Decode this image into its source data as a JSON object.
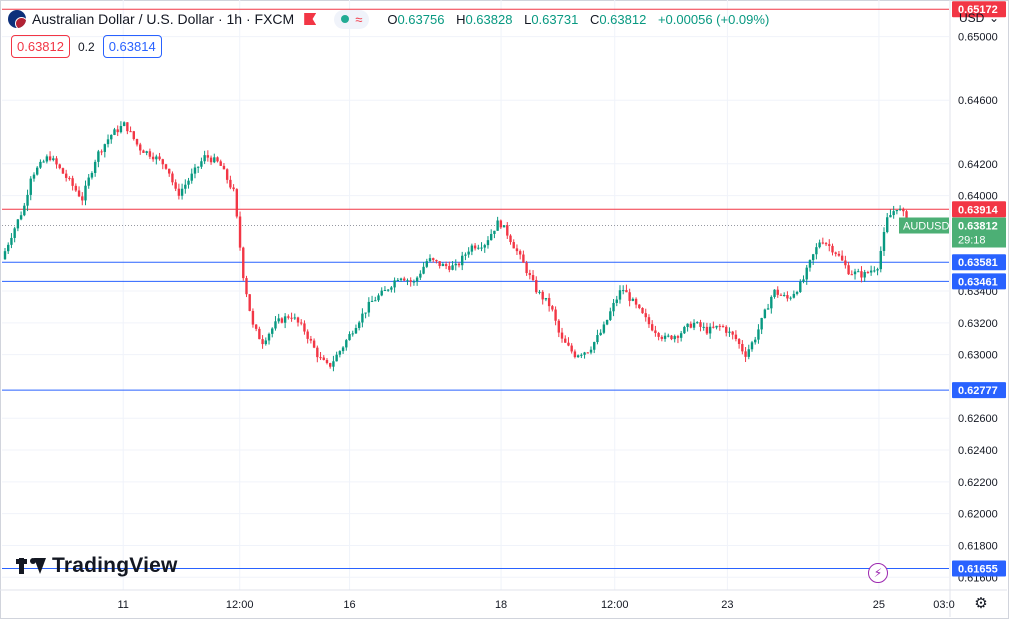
{
  "header": {
    "title": "Australian Dollar / U.S. Dollar · 1h · FXCM",
    "flag_icon": "au-us-flag-icon",
    "ohlc": {
      "o_label": "O",
      "o": "0.63756",
      "h_label": "H",
      "h": "0.63828",
      "l_label": "L",
      "l": "0.63731",
      "c_label": "C",
      "c": "0.63812",
      "change": "+0.00056 (+0.09%)"
    },
    "colors": {
      "up": "#089981",
      "down": "#f23645"
    }
  },
  "trade": {
    "sell": "0.63812",
    "spread": "0.2",
    "buy": "0.63814"
  },
  "currency": {
    "label": "USD",
    "icon": "chevron-down-icon"
  },
  "logo": {
    "text": "TradingView"
  },
  "icons": {
    "bolt": "lightning-icon",
    "settings": "gear-icon"
  },
  "chart_data": {
    "type": "candlestick",
    "symbol": "AUDUSD",
    "timeframe": "1h",
    "ylim": [
      0.6152,
      0.6523
    ],
    "y_ticks": [
      "0.65000",
      "0.64600",
      "0.64200",
      "0.64000",
      "0.63400",
      "0.63200",
      "0.63000",
      "0.62600",
      "0.62400",
      "0.62200",
      "0.62000",
      "0.61800",
      "0.61600"
    ],
    "x_ticks": [
      {
        "label": "11",
        "t": 0.128
      },
      {
        "label": "12:00",
        "t": 0.251
      },
      {
        "label": "16",
        "t": 0.367
      },
      {
        "label": "18",
        "t": 0.527
      },
      {
        "label": "12:00",
        "t": 0.647
      },
      {
        "label": "23",
        "t": 0.766
      },
      {
        "label": "25",
        "t": 0.926
      },
      {
        "label": "03:0",
        "t": 1.01
      }
    ],
    "horizontal_lines": [
      {
        "label": "0.65172",
        "value": 0.65172,
        "color": "#f23645"
      },
      {
        "label": "0.63914",
        "value": 0.63914,
        "color": "#f23645"
      },
      {
        "label": "0.63581",
        "value": 0.63581,
        "color": "#2962ff"
      },
      {
        "label": "0.63461",
        "value": 0.63461,
        "color": "#2962ff"
      },
      {
        "label": "0.62777",
        "value": 0.62777,
        "color": "#2962ff"
      },
      {
        "label": "0.61655",
        "value": 0.61655,
        "color": "#2962ff"
      }
    ],
    "last_price": {
      "symbol": "AUDUSD",
      "value": 0.63812,
      "label": "0.63812",
      "countdown": "29:18",
      "color": "#4caf75"
    },
    "price_path": [
      [
        0.0,
        0.636
      ],
      [
        0.01,
        0.6375
      ],
      [
        0.025,
        0.6395
      ],
      [
        0.03,
        0.6412
      ],
      [
        0.05,
        0.6425
      ],
      [
        0.07,
        0.641
      ],
      [
        0.085,
        0.6398
      ],
      [
        0.1,
        0.6425
      ],
      [
        0.115,
        0.6438
      ],
      [
        0.13,
        0.6445
      ],
      [
        0.145,
        0.643
      ],
      [
        0.16,
        0.6425
      ],
      [
        0.175,
        0.6418
      ],
      [
        0.185,
        0.64
      ],
      [
        0.2,
        0.6412
      ],
      [
        0.215,
        0.6425
      ],
      [
        0.23,
        0.642
      ],
      [
        0.245,
        0.6402
      ],
      [
        0.255,
        0.635
      ],
      [
        0.265,
        0.6318
      ],
      [
        0.275,
        0.6308
      ],
      [
        0.29,
        0.632
      ],
      [
        0.305,
        0.6325
      ],
      [
        0.32,
        0.6315
      ],
      [
        0.335,
        0.6298
      ],
      [
        0.345,
        0.6292
      ],
      [
        0.36,
        0.6305
      ],
      [
        0.375,
        0.632
      ],
      [
        0.39,
        0.6333
      ],
      [
        0.405,
        0.634
      ],
      [
        0.42,
        0.635
      ],
      [
        0.435,
        0.6345
      ],
      [
        0.45,
        0.636
      ],
      [
        0.465,
        0.6356
      ],
      [
        0.48,
        0.6355
      ],
      [
        0.495,
        0.6368
      ],
      [
        0.51,
        0.637
      ],
      [
        0.525,
        0.6384
      ],
      [
        0.535,
        0.6375
      ],
      [
        0.55,
        0.6358
      ],
      [
        0.565,
        0.634
      ],
      [
        0.58,
        0.633
      ],
      [
        0.59,
        0.631
      ],
      [
        0.605,
        0.63
      ],
      [
        0.62,
        0.6303
      ],
      [
        0.635,
        0.6316
      ],
      [
        0.645,
        0.633
      ],
      [
        0.655,
        0.6342
      ],
      [
        0.67,
        0.633
      ],
      [
        0.685,
        0.6318
      ],
      [
        0.7,
        0.631
      ],
      [
        0.715,
        0.6313
      ],
      [
        0.73,
        0.632
      ],
      [
        0.745,
        0.6315
      ],
      [
        0.76,
        0.6318
      ],
      [
        0.775,
        0.631
      ],
      [
        0.785,
        0.63
      ],
      [
        0.795,
        0.631
      ],
      [
        0.805,
        0.6325
      ],
      [
        0.815,
        0.634
      ],
      [
        0.83,
        0.6335
      ],
      [
        0.845,
        0.6345
      ],
      [
        0.855,
        0.636
      ],
      [
        0.865,
        0.6373
      ],
      [
        0.88,
        0.6365
      ],
      [
        0.895,
        0.6352
      ],
      [
        0.91,
        0.635
      ],
      [
        0.925,
        0.6356
      ],
      [
        0.935,
        0.6385
      ],
      [
        0.945,
        0.6393
      ],
      [
        0.955,
        0.6386
      ],
      [
        0.965,
        0.6381
      ]
    ],
    "grid": true,
    "colors": {
      "up": "#089981",
      "down": "#f23645"
    }
  }
}
